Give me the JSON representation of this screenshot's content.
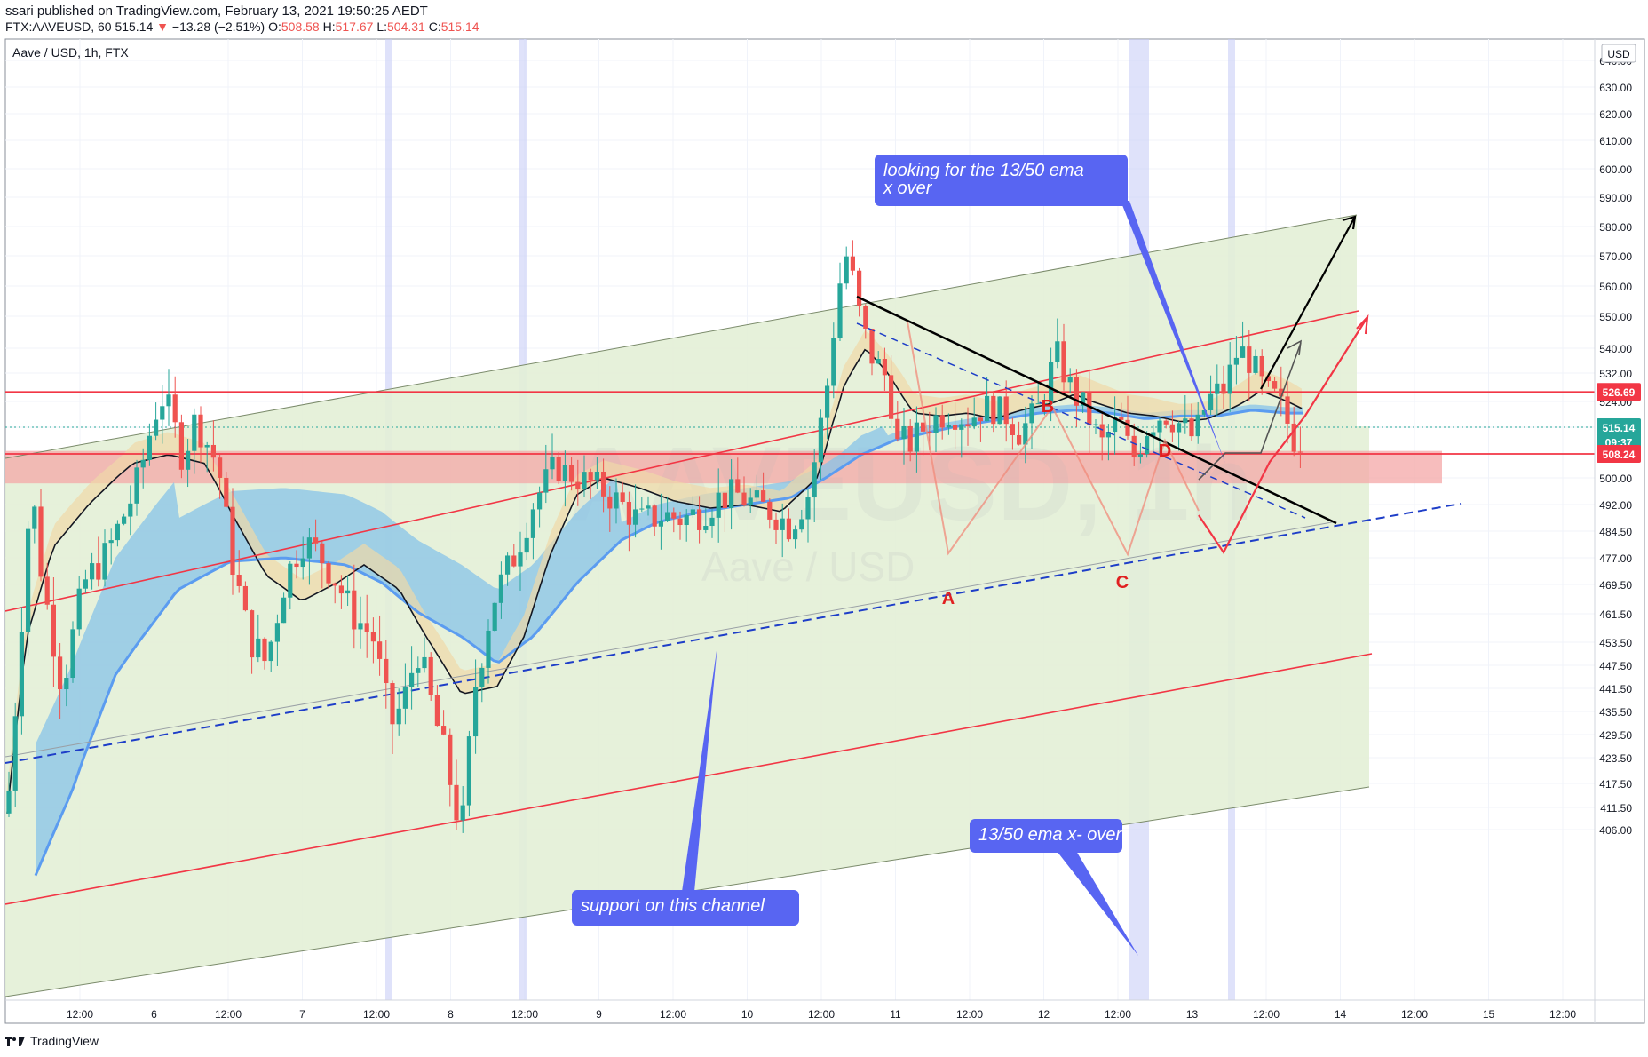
{
  "header": {
    "published": "ssari published on TradingView.com, February 13, 2021 19:50:25 AEDT",
    "symbol": "FTX:AAVEUSD, 60",
    "last": "515.14",
    "change_arrow": "▼",
    "change": "−13.28 (−2.51%)",
    "o_label": "O:",
    "o_val": "508.58",
    "h_label": "H:",
    "h_val": "517.67",
    "l_label": "L:",
    "l_val": "504.31",
    "c_label": "C:",
    "c_val": "515.14"
  },
  "chart_title": "Aave / USD, 1h, FTX",
  "watermark": "AAVEUSD, 1h",
  "watermark_sub": "Aave / USD",
  "currency_button": "USD",
  "footer_brand": "TradingView",
  "colors": {
    "up": "#26a69a",
    "down": "#ef5350",
    "channel_fill": "#e3f0d6",
    "red_line": "#f23645",
    "ema_blue": "#5b9cf0",
    "ema_cloud": "#87c3e8",
    "ema_tan": "#f0d9a8",
    "callout": "#5865f2",
    "black": "#000000"
  },
  "price_labels": [
    {
      "text": "526.69",
      "value": 526.69,
      "color": "#f23645"
    },
    {
      "text": "515.14",
      "value": 515.14,
      "color": "#26a69a"
    },
    {
      "text": "09:37",
      "value": 511.3,
      "color": "#26a69a"
    },
    {
      "text": "508.24",
      "value": 508.24,
      "color": "#f23645"
    }
  ],
  "annotations": {
    "A": "A",
    "B": "B",
    "C": "C",
    "D": "D",
    "callout_top_1": "looking for the 13/50 ema",
    "callout_top_2": "x over",
    "callout_mid": "13/50 ema x- over",
    "callout_bottom": "support on this channel"
  },
  "chart_data": {
    "type": "candlestick",
    "title": "Aave / USD, 1h, FTX",
    "y_axis_ticks": [
      "640.00",
      "630.00",
      "620.00",
      "610.00",
      "600.00",
      "590.00",
      "580.00",
      "570.00",
      "560.00",
      "550.00",
      "540.00",
      "532.00",
      "524.00",
      "515.14",
      "508.24",
      "500.00",
      "492.00",
      "484.50",
      "477.00",
      "469.50",
      "461.50",
      "453.50",
      "447.50",
      "441.50",
      "435.50",
      "429.50",
      "423.50",
      "417.50",
      "411.50",
      "406.00"
    ],
    "x_axis_ticks": [
      "12:00",
      "6",
      "12:00",
      "7",
      "12:00",
      "8",
      "12:00",
      "9",
      "12:00",
      "10",
      "12:00",
      "11",
      "12:00",
      "12",
      "12:00",
      "13",
      "12:00",
      "14",
      "12:00",
      "15",
      "12:00"
    ],
    "ylim": [
      404,
      645
    ],
    "horizontal_levels": [
      526.69,
      508.24
    ],
    "support_zone": [
      503,
      509
    ],
    "ohlc_last": {
      "open": 508.58,
      "high": 517.67,
      "low": 504.31,
      "close": 515.14
    },
    "ema_fast_period": 13,
    "ema_slow_period": 50,
    "legend": "none",
    "grid": true
  }
}
